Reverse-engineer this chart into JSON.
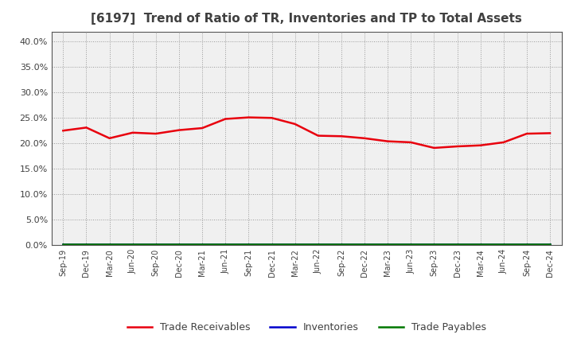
{
  "title": "[6197]  Trend of Ratio of TR, Inventories and TP to Total Assets",
  "x_labels": [
    "Sep-19",
    "Dec-19",
    "Mar-20",
    "Jun-20",
    "Sep-20",
    "Dec-20",
    "Mar-21",
    "Jun-21",
    "Sep-21",
    "Dec-21",
    "Mar-22",
    "Jun-22",
    "Sep-22",
    "Dec-22",
    "Mar-23",
    "Jun-23",
    "Sep-23",
    "Dec-23",
    "Mar-24",
    "Jun-24",
    "Sep-24",
    "Dec-24"
  ],
  "trade_receivables": [
    0.225,
    0.231,
    0.21,
    0.221,
    0.219,
    0.226,
    0.23,
    0.248,
    0.251,
    0.25,
    0.238,
    0.215,
    0.214,
    0.21,
    0.204,
    0.202,
    0.191,
    0.194,
    0.196,
    0.202,
    0.219,
    0.22
  ],
  "inventories": [
    0.002,
    0.002,
    0.002,
    0.002,
    0.002,
    0.002,
    0.002,
    0.002,
    0.002,
    0.002,
    0.002,
    0.002,
    0.002,
    0.002,
    0.002,
    0.002,
    0.002,
    0.002,
    0.002,
    0.002,
    0.002,
    0.002
  ],
  "trade_payables": [
    0.001,
    0.001,
    0.001,
    0.001,
    0.001,
    0.001,
    0.001,
    0.001,
    0.001,
    0.001,
    0.001,
    0.001,
    0.001,
    0.001,
    0.001,
    0.001,
    0.001,
    0.001,
    0.001,
    0.001,
    0.001,
    0.001
  ],
  "tr_color": "#e8000d",
  "inv_color": "#0000cc",
  "tp_color": "#007700",
  "ylim": [
    0.0,
    0.42
  ],
  "yticks": [
    0.0,
    0.05,
    0.1,
    0.15,
    0.2,
    0.25,
    0.3,
    0.35,
    0.4
  ],
  "background_color": "#ffffff",
  "plot_bg_color": "#f0f0f0",
  "grid_color": "#999999",
  "title_fontsize": 11,
  "title_color": "#404040",
  "tick_color": "#404040",
  "legend_labels": [
    "Trade Receivables",
    "Inventories",
    "Trade Payables"
  ]
}
